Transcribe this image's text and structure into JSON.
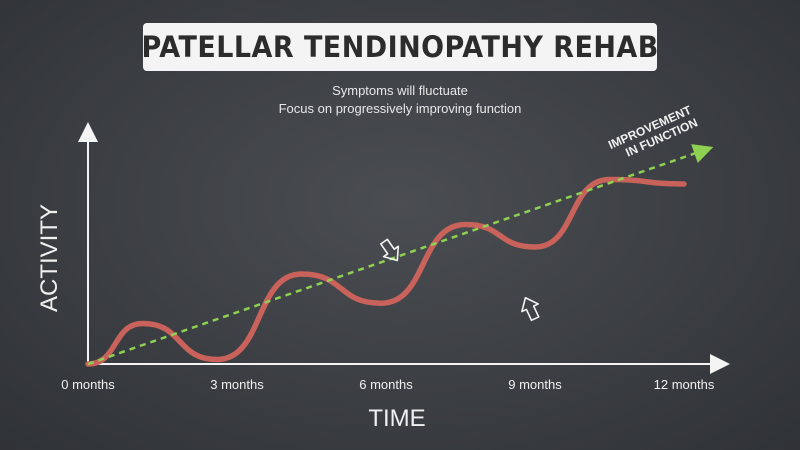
{
  "title": "PATELLAR TENDINOPATHY REHAB",
  "subtitle_lines": [
    "Symptoms will fluctuate",
    "Focus on progressively improving function"
  ],
  "chart_data": {
    "type": "line",
    "xlabel": "TIME",
    "ylabel": "ACTIVITY",
    "x_ticks": [
      "0 months",
      "3 months",
      "6 months",
      "9 months",
      "12 months"
    ],
    "xlim": [
      0,
      12
    ],
    "ylim": [
      0,
      10
    ],
    "series": [
      {
        "role": "symptoms",
        "color": "#c8625a",
        "x": [
          0,
          1.1,
          2.6,
          4.3,
          5.9,
          7.6,
          9.0,
          10.5,
          12.0
        ],
        "y": [
          0.0,
          1.8,
          0.2,
          4.0,
          2.7,
          6.2,
          5.2,
          8.2,
          8.0
        ]
      },
      {
        "name": "IMPROVEMENT IN FUNCTION",
        "role": "trend",
        "style": "dashed",
        "color": "#8ed152",
        "x": [
          0,
          12.4
        ],
        "y": [
          0,
          9.5
        ]
      }
    ],
    "annotations": [
      {
        "text_lines": [
          "IMPROVEMENT",
          "IN FUNCTION"
        ]
      }
    ],
    "markers": [
      {
        "type": "arrow-down",
        "x": 6.1,
        "y": 5.0
      },
      {
        "type": "arrow-up",
        "x": 8.9,
        "y": 2.5
      }
    ]
  }
}
